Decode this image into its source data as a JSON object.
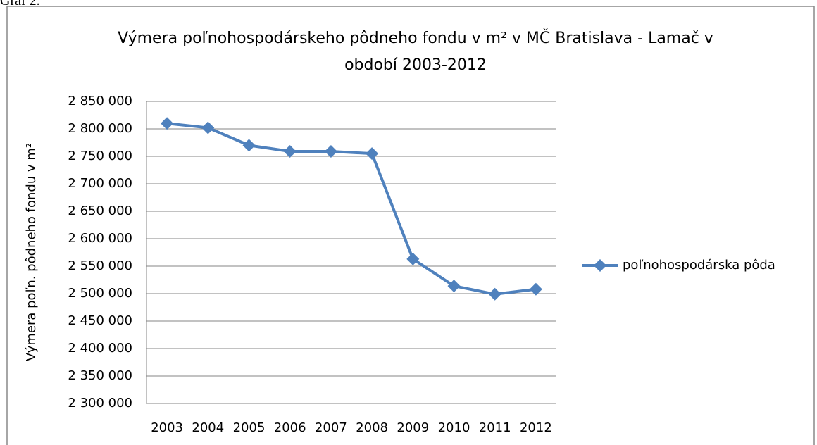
{
  "caption": "Graf 2.",
  "chart_data": {
    "type": "line",
    "title": "Výmera poľnohospodárskeho pôdneho fondu v m² v MČ Bratislava - Lamač v období 2003-2012",
    "y_label": "Výmera poľn. pôdneho fondu v m²",
    "categories": [
      "2003",
      "2004",
      "2005",
      "2006",
      "2007",
      "2008",
      "2009",
      "2010",
      "2011",
      "2012"
    ],
    "series": [
      {
        "name": "poľnohospodárska pôda",
        "color": "#4f81bd",
        "values": [
          2810000,
          2802000,
          2770000,
          2759000,
          2759000,
          2755000,
          2563000,
          2514000,
          2499000,
          2508000
        ]
      }
    ],
    "ylim": [
      2300000,
      2850000
    ],
    "yticks": [
      {
        "value": 2300000,
        "label": "2 300 000"
      },
      {
        "value": 2350000,
        "label": "2 350 000"
      },
      {
        "value": 2400000,
        "label": "2 400 000"
      },
      {
        "value": 2450000,
        "label": "2 450 000"
      },
      {
        "value": 2500000,
        "label": "2 500 000"
      },
      {
        "value": 2550000,
        "label": "2 550 000"
      },
      {
        "value": 2600000,
        "label": "2 600 000"
      },
      {
        "value": 2650000,
        "label": "2 650 000"
      },
      {
        "value": 2700000,
        "label": "2 700 000"
      },
      {
        "value": 2750000,
        "label": "2 750 000"
      },
      {
        "value": 2800000,
        "label": "2 800 000"
      },
      {
        "value": 2850000,
        "label": "2 850 000"
      }
    ],
    "grid": true,
    "legend": "right"
  }
}
